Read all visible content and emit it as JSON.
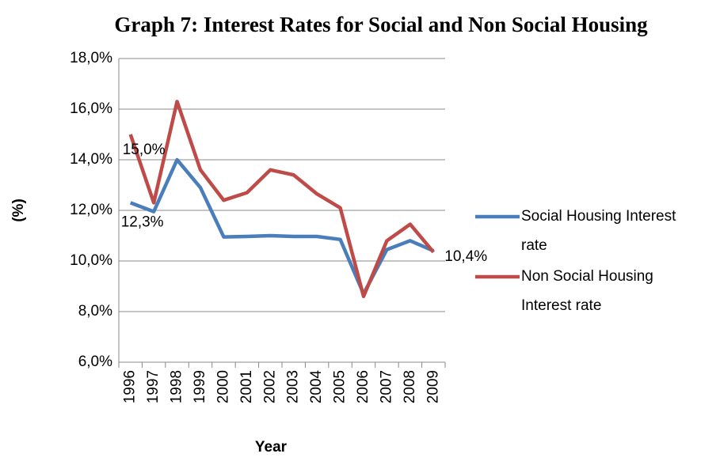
{
  "chart_data": {
    "type": "line",
    "title": "Graph 7:  Interest Rates for Social and Non Social Housing",
    "x_label": "Year",
    "y_label": "(%)",
    "categories": [
      "1996",
      "1997",
      "1998",
      "1999",
      "2000",
      "2001",
      "2002",
      "2003",
      "2004",
      "2005",
      "2006",
      "2007",
      "2008",
      "2009"
    ],
    "series": [
      {
        "name": "Social Housing Interest rate",
        "color": "#4a7ebb",
        "values": [
          12.3,
          11.95,
          14.0,
          12.9,
          10.95,
          10.97,
          11.0,
          10.97,
          10.97,
          10.85,
          8.7,
          10.45,
          10.8,
          10.4
        ],
        "value_labels": [
          "12,3%",
          null,
          null,
          null,
          null,
          null,
          null,
          null,
          null,
          null,
          null,
          null,
          null,
          "10,4%"
        ]
      },
      {
        "name": "Non Social Housing Interest rate",
        "color": "#be4b48",
        "values": [
          15.0,
          12.3,
          16.3,
          13.6,
          12.4,
          12.7,
          13.6,
          13.4,
          12.65,
          12.1,
          8.6,
          10.8,
          11.45,
          10.35
        ],
        "value_labels": [
          "15,0%",
          null,
          null,
          null,
          null,
          null,
          null,
          null,
          null,
          null,
          null,
          null,
          null,
          null
        ]
      }
    ],
    "ylim": [
      6,
      18
    ],
    "yticks": [
      {
        "value": 6,
        "label": "6,0%"
      },
      {
        "value": 8,
        "label": "8,0%"
      },
      {
        "value": 10,
        "label": "10,0%"
      },
      {
        "value": 12,
        "label": "12,0%"
      },
      {
        "value": 14,
        "label": "14,0%"
      },
      {
        "value": 16,
        "label": "16,0%"
      },
      {
        "value": 18,
        "label": "18,0%"
      }
    ],
    "grid": true,
    "legend": "right"
  }
}
